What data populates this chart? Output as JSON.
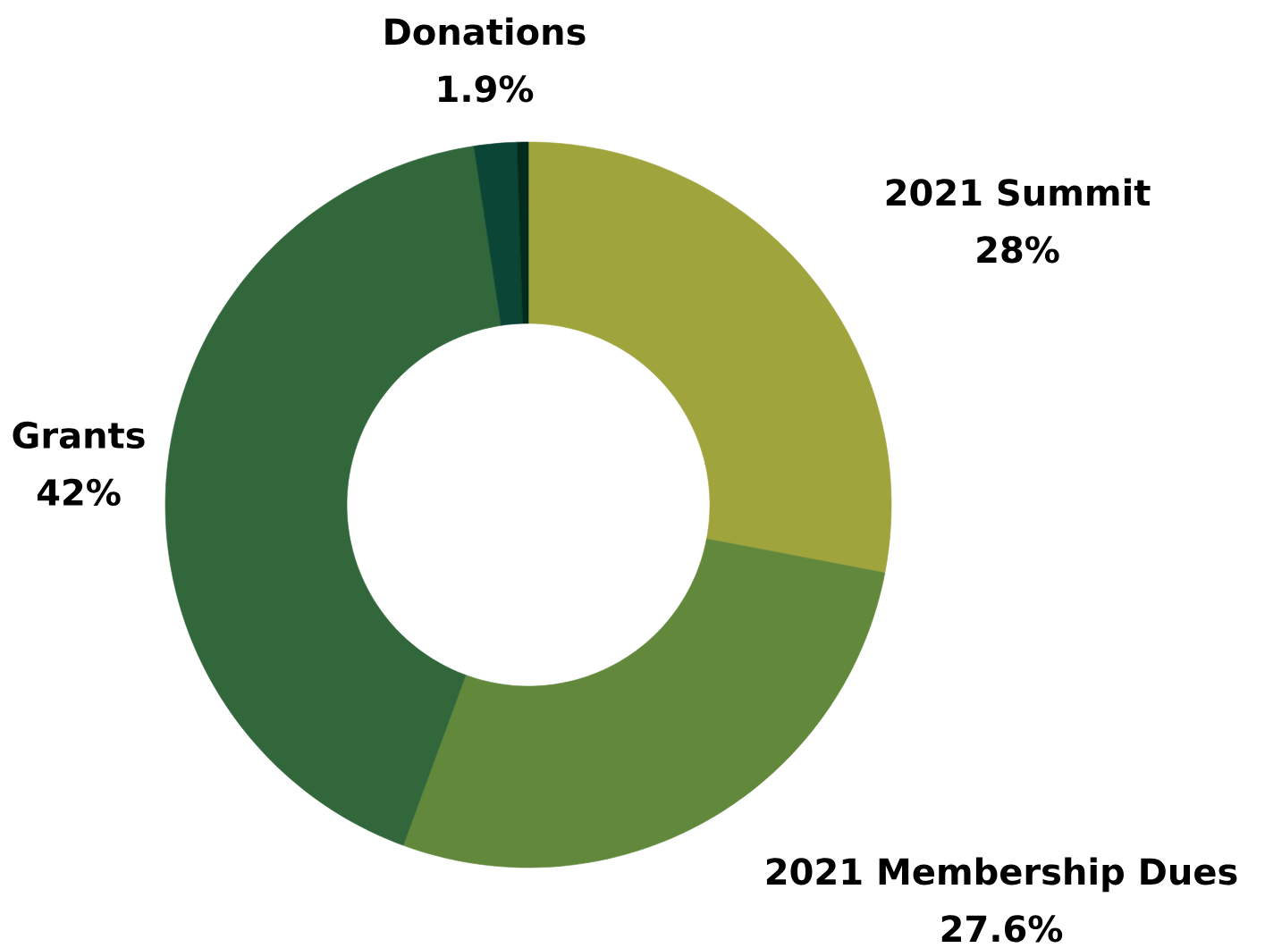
{
  "chart_data": {
    "type": "donut",
    "categories": [
      "2021 Summit",
      "2021 Membership Dues",
      "Grants",
      "Donations",
      null
    ],
    "values": [
      28,
      27.6,
      42,
      1.9,
      0.5
    ],
    "value_labels": [
      "28%",
      "27.6%",
      "42%",
      "1.9%",
      null
    ],
    "colors": [
      "#a0a43c",
      "#62883c",
      "#31673b",
      "#0b4535",
      "#022a1f"
    ]
  }
}
